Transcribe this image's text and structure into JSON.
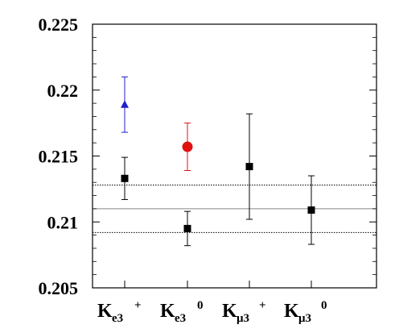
{
  "chart_data": {
    "type": "scatter",
    "title": "",
    "xlabel": "",
    "ylabel": "",
    "ylim": [
      0.205,
      0.225
    ],
    "yticks": [
      "0.205",
      "0.21",
      "0.215",
      "0.22",
      "0.225"
    ],
    "yticks_values": [
      0.205,
      0.21,
      0.215,
      0.22,
      0.225
    ],
    "categories": [
      {
        "main": "K",
        "sub": "e3",
        "sup": "+"
      },
      {
        "main": "K",
        "sub": "e3",
        "sup": "0"
      },
      {
        "main": "K",
        "sub": "μ3",
        "sup": "+"
      },
      {
        "main": "K",
        "sub": "μ3",
        "sup": "0"
      }
    ],
    "series": [
      {
        "marker": "triangle",
        "color": "#1f1fd0",
        "points": [
          {
            "category": 0,
            "y": 0.2189,
            "err_low": 0.2168,
            "err_high": 0.221
          }
        ]
      },
      {
        "marker": "circle",
        "color": "#e01010",
        "points": [
          {
            "category": 1,
            "y": 0.2157,
            "err_low": 0.2139,
            "err_high": 0.2175
          }
        ]
      },
      {
        "marker": "square",
        "color": "#000000",
        "points": [
          {
            "category": 0,
            "y": 0.2133,
            "err_low": 0.2117,
            "err_high": 0.2149
          },
          {
            "category": 1,
            "y": 0.2095,
            "err_low": 0.2082,
            "err_high": 0.2108
          },
          {
            "category": 2,
            "y": 0.2142,
            "err_low": 0.2102,
            "err_high": 0.2182
          },
          {
            "category": 3,
            "y": 0.2109,
            "err_low": 0.2083,
            "err_high": 0.2135
          }
        ]
      }
    ],
    "reference_lines": [
      {
        "y": 0.211,
        "style": "solid",
        "color": "#888888"
      },
      {
        "y": 0.2128,
        "style": "dotted",
        "color": "#000000"
      },
      {
        "y": 0.2092,
        "style": "dotted",
        "color": "#000000"
      }
    ],
    "grid": false
  }
}
